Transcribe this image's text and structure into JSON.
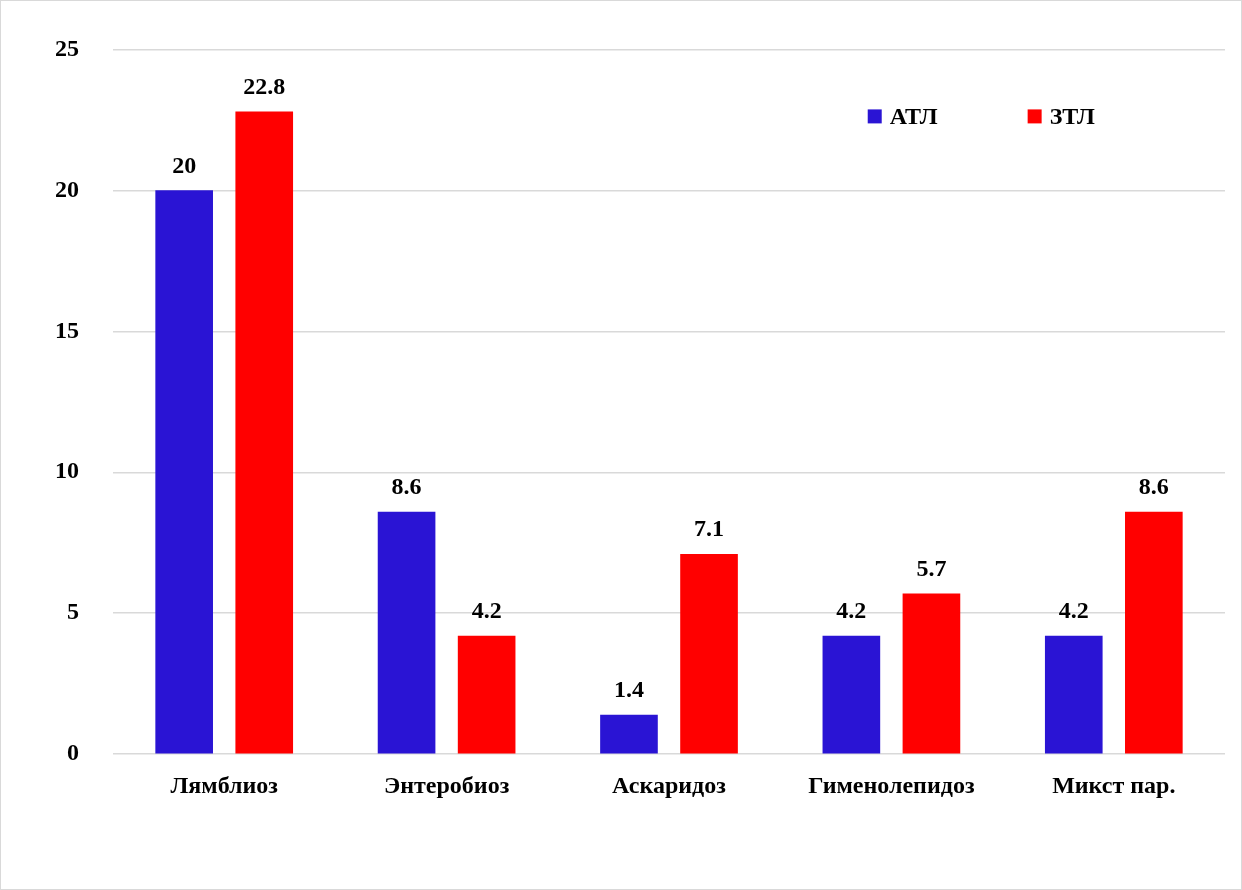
{
  "chart_data": {
    "type": "bar",
    "categories": [
      "Лямблиоз",
      "Энтеробиоз",
      "Аскаридоз",
      "Гименолепидоз",
      "Микст пар."
    ],
    "series": [
      {
        "name": "АТЛ",
        "color": "#2a14d4",
        "values": [
          20,
          8.6,
          1.4,
          4.2,
          4.2
        ]
      },
      {
        "name": "ЗТЛ",
        "color": "#ff0000",
        "values": [
          22.8,
          4.2,
          7.1,
          5.7,
          8.6
        ]
      }
    ],
    "ylim": [
      0,
      25
    ],
    "yticks": [
      0,
      5,
      10,
      15,
      20,
      25
    ],
    "grid": "y",
    "legend": "top right",
    "data_labels": true
  }
}
